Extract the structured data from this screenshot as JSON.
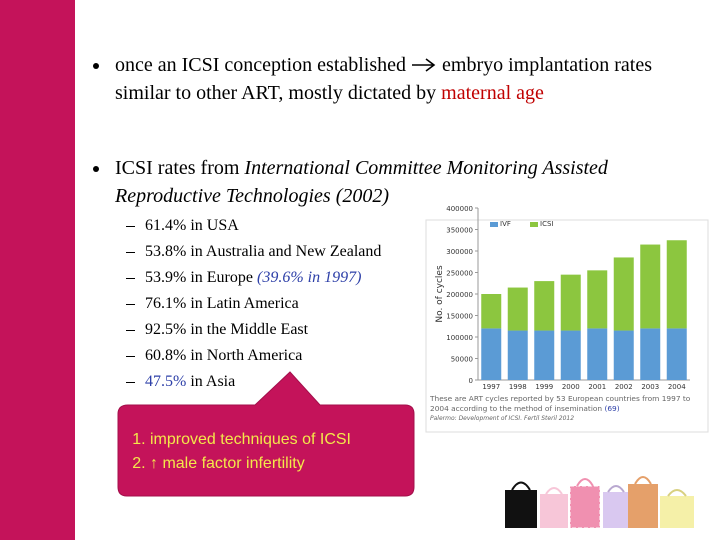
{
  "slide": {
    "bullets": [
      {
        "parts": [
          "once an ICSI conception established",
          "embryo implantation rates similar to other ART, mostly dictated by",
          "maternal age"
        ]
      },
      {
        "parts": [
          "ICSI rates from",
          "International Committee Monitoring Assisted Reproductive Technologies (2002)"
        ]
      }
    ],
    "sub_items": [
      [
        "61.4%",
        "in USA"
      ],
      [
        "53.8%",
        "in Australia and New Zealand"
      ],
      [
        "53.9%",
        "in Europe",
        "(39.6% in 1997)"
      ],
      [
        "76.1%",
        "in Latin America"
      ],
      [
        "92.5%",
        "in the Middle East"
      ],
      [
        "60.8%",
        "in North America"
      ],
      [
        "47.5%",
        "in Asia"
      ]
    ],
    "callout": [
      "improved techniques of ICSI",
      "↑ male factor infertility"
    ]
  },
  "chart_data": {
    "type": "bar",
    "stacked": true,
    "y_label": "No. of cycles",
    "categories": [
      "1997",
      "1998",
      "1999",
      "2000",
      "2001",
      "2002",
      "2003",
      "2004"
    ],
    "series": [
      {
        "name": "IVF",
        "color": "#5b9bd5",
        "values": [
          120000,
          115000,
          115000,
          115000,
          120000,
          115000,
          120000,
          120000
        ]
      },
      {
        "name": "ICSI",
        "color": "#8cc63f",
        "values": [
          80000,
          100000,
          115000,
          130000,
          135000,
          170000,
          195000,
          205000
        ]
      }
    ],
    "ylim": [
      0,
      400000
    ],
    "yticks": [
      0,
      50000,
      100000,
      150000,
      200000,
      250000,
      300000,
      350000,
      400000
    ],
    "caption": "These are ART cycles reported by 53 European countries from 1997 to 2004 according to the method of insemination",
    "caption_ref": "(69)",
    "source": "Palermo: Development of ICSI. Fertil Steril 2012"
  }
}
